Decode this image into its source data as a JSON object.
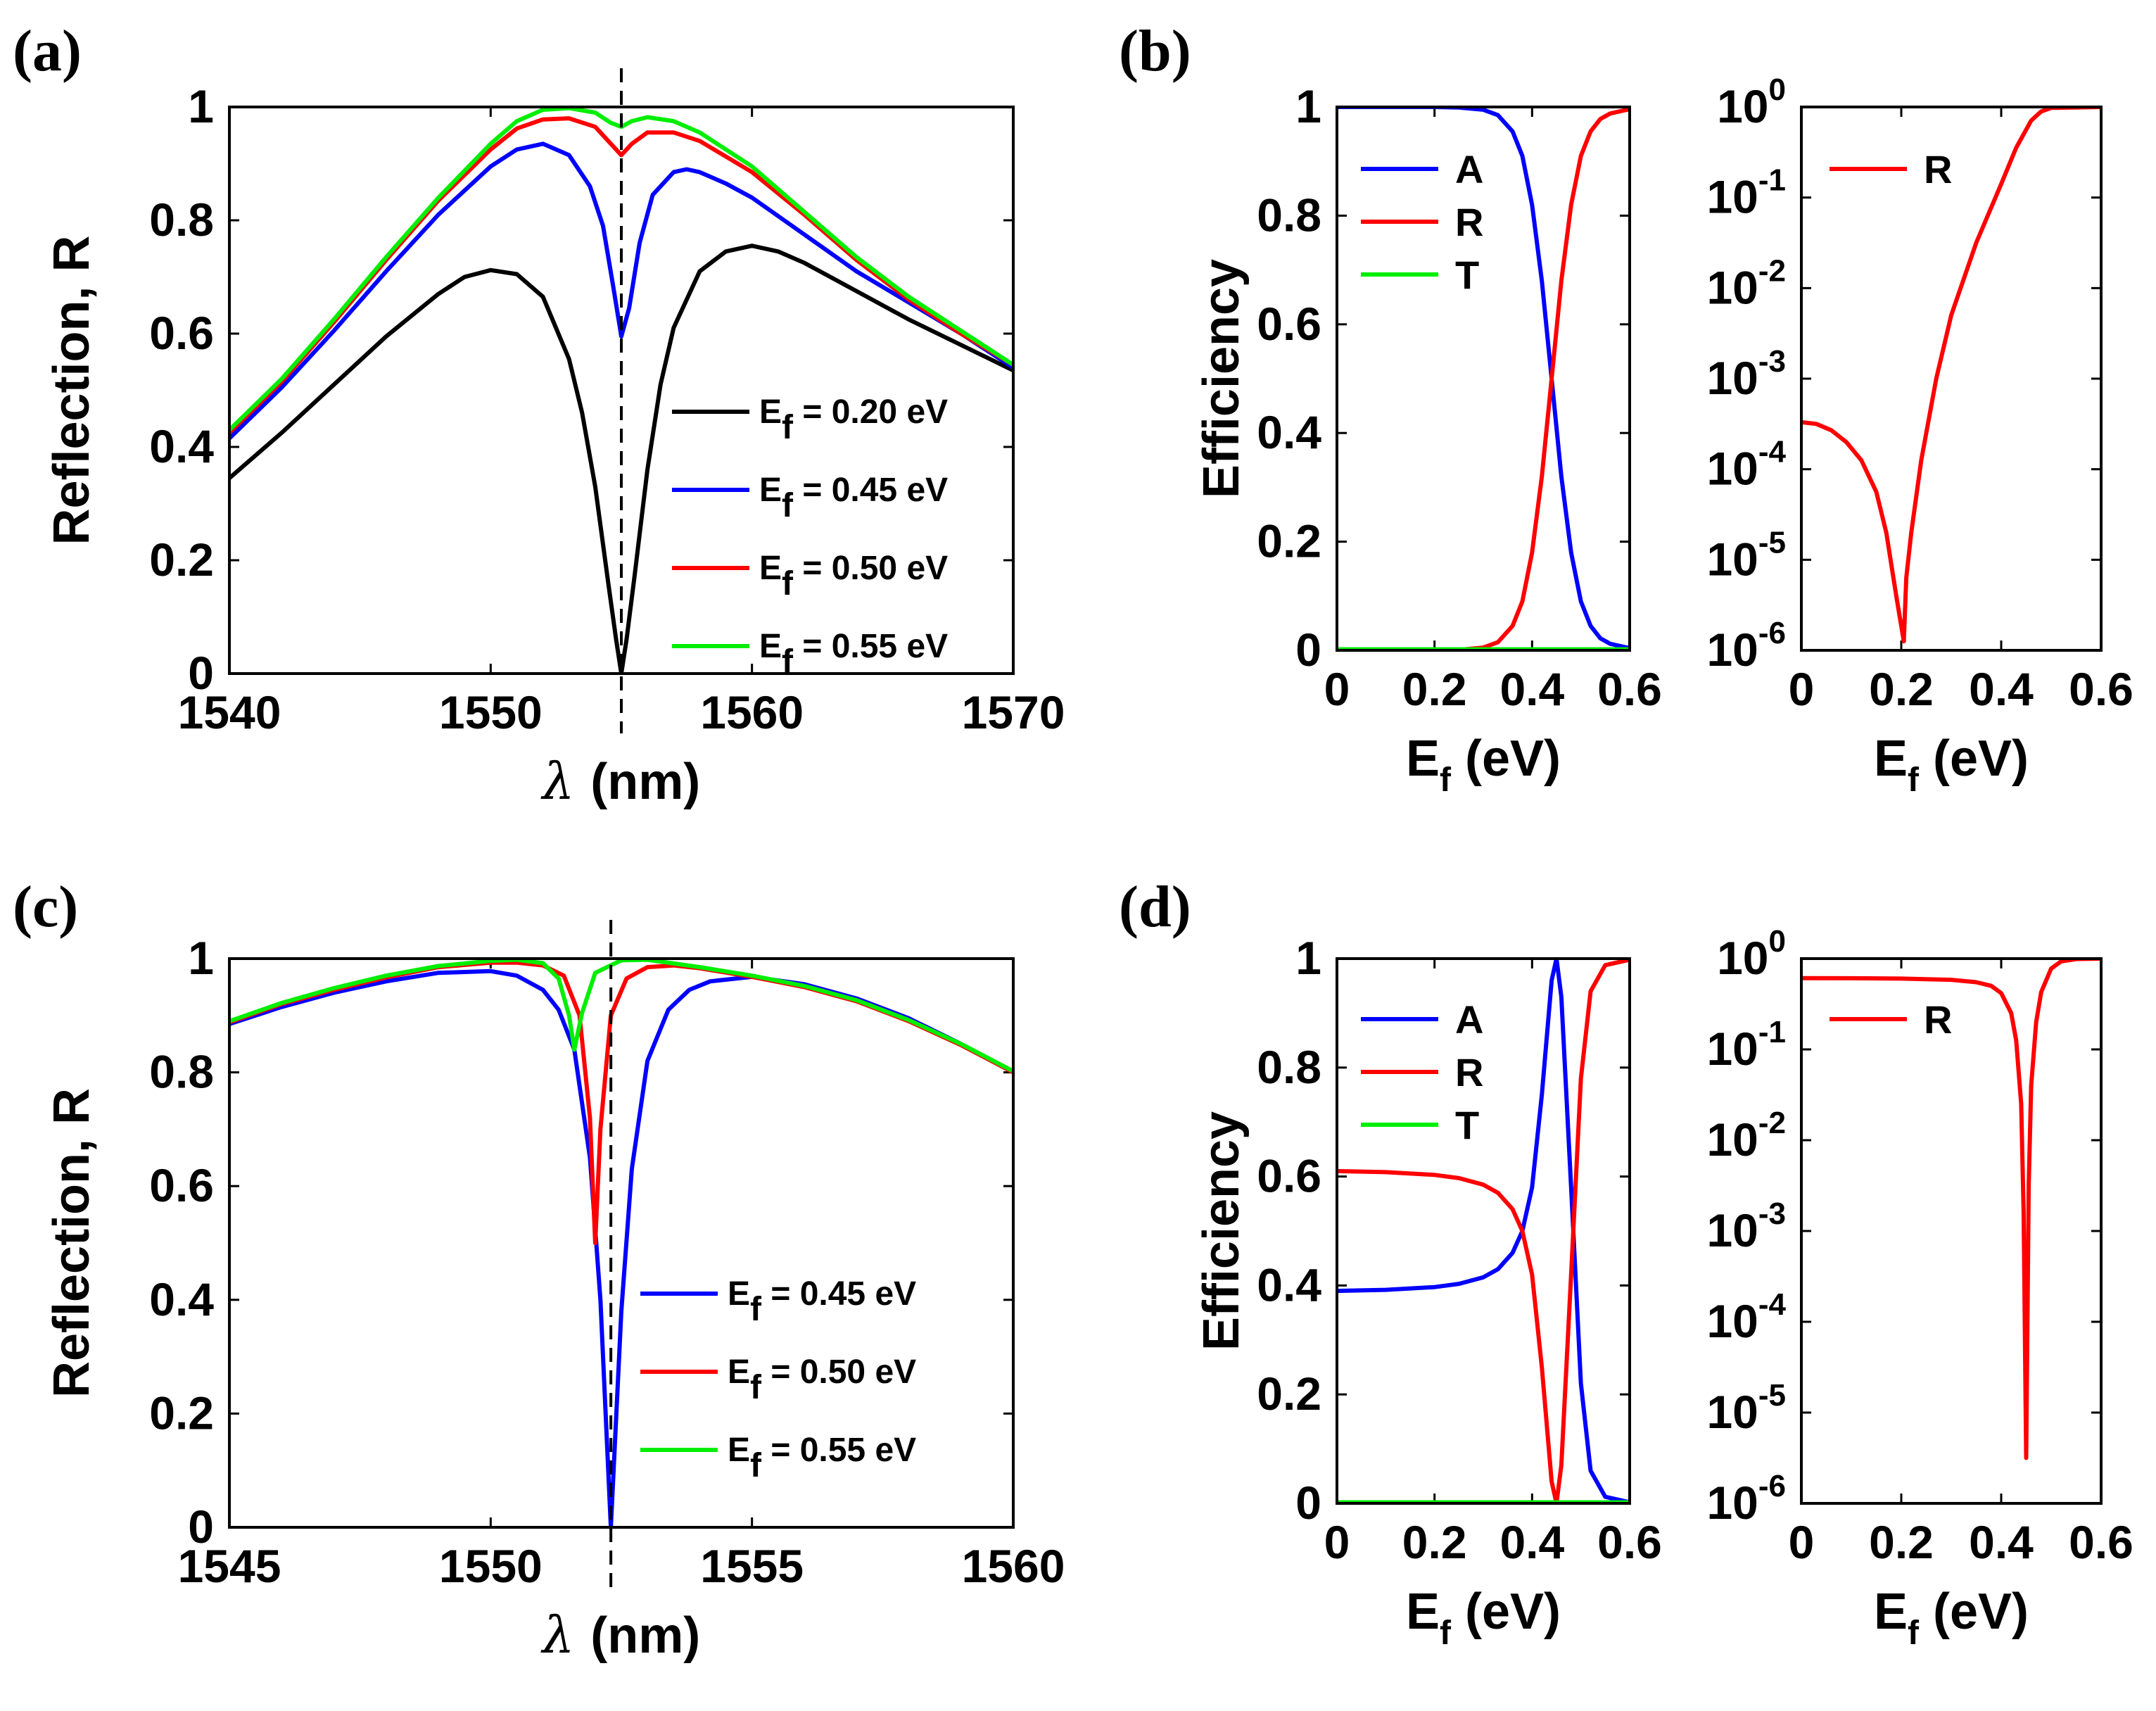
{
  "colors": {
    "black": "#000000",
    "blue": "#0000ff",
    "red": "#ff0000",
    "green": "#00ee00"
  },
  "panels": [
    {
      "label": "(a)"
    },
    {
      "label": "(b)"
    },
    {
      "label": "(c)"
    },
    {
      "label": "(d)"
    }
  ],
  "chart_data": [
    {
      "id": "a",
      "type": "line",
      "xlabel": "λ (nm)",
      "ylabel": "Reflection, R",
      "xlim": [
        1540,
        1570
      ],
      "ylim": [
        0,
        1
      ],
      "xticks": [
        "1540",
        "1550",
        "1560",
        "1570"
      ],
      "yticks": [
        "0",
        "0.2",
        "0.4",
        "0.6",
        "0.8",
        "1"
      ],
      "vline": 1555,
      "legend_position": "bottom-right",
      "series": [
        {
          "name": "Ef = 0.20 eV",
          "base": "E",
          "sub": "f",
          "rest": " = 0.20 eV",
          "color": "#000000",
          "x": [
            1540,
            1542,
            1544,
            1546,
            1548,
            1549,
            1550,
            1551,
            1552,
            1553,
            1553.5,
            1554,
            1554.5,
            1554.8,
            1555,
            1555.2,
            1555.5,
            1556,
            1556.5,
            1557,
            1558,
            1559,
            1560,
            1561,
            1562,
            1564,
            1566,
            1568,
            1570
          ],
          "y": [
            0.345,
            0.425,
            0.51,
            0.595,
            0.67,
            0.7,
            0.712,
            0.705,
            0.665,
            0.555,
            0.46,
            0.33,
            0.16,
            0.06,
            0.0,
            0.06,
            0.17,
            0.36,
            0.51,
            0.61,
            0.71,
            0.745,
            0.755,
            0.745,
            0.725,
            0.675,
            0.625,
            0.58,
            0.535
          ]
        },
        {
          "name": "Ef = 0.45 eV",
          "base": "E",
          "sub": "f",
          "rest": " = 0.45 eV",
          "color": "#0000ff",
          "x": [
            1540,
            1542,
            1544,
            1546,
            1548,
            1550,
            1551,
            1552,
            1553,
            1553.8,
            1554.3,
            1554.7,
            1555,
            1555.3,
            1555.7,
            1556.2,
            1557,
            1557.5,
            1558,
            1559,
            1560,
            1562,
            1564,
            1566,
            1568,
            1570
          ],
          "y": [
            0.415,
            0.505,
            0.605,
            0.71,
            0.81,
            0.895,
            0.925,
            0.935,
            0.915,
            0.86,
            0.79,
            0.68,
            0.595,
            0.645,
            0.76,
            0.845,
            0.885,
            0.89,
            0.885,
            0.865,
            0.84,
            0.775,
            0.71,
            0.655,
            0.6,
            0.54
          ]
        },
        {
          "name": "Ef = 0.50 eV",
          "base": "E",
          "sub": "f",
          "rest": " = 0.50 eV",
          "color": "#ff0000",
          "x": [
            1540,
            1542,
            1544,
            1546,
            1548,
            1550,
            1551,
            1552,
            1553,
            1554,
            1554.6,
            1555,
            1555.4,
            1556,
            1557,
            1558,
            1560,
            1562,
            1564,
            1566,
            1568,
            1570
          ],
          "y": [
            0.425,
            0.515,
            0.62,
            0.73,
            0.835,
            0.925,
            0.962,
            0.978,
            0.98,
            0.965,
            0.935,
            0.915,
            0.935,
            0.955,
            0.955,
            0.94,
            0.885,
            0.81,
            0.73,
            0.66,
            0.6,
            0.545
          ]
        },
        {
          "name": "Ef = 0.55 eV",
          "base": "E",
          "sub": "f",
          "rest": " = 0.55 eV",
          "color": "#00ee00",
          "x": [
            1540,
            1542,
            1544,
            1546,
            1548,
            1550,
            1551,
            1552,
            1553,
            1554,
            1554.6,
            1555,
            1555.4,
            1556,
            1557,
            1558,
            1560,
            1562,
            1564,
            1566,
            1568,
            1570
          ],
          "y": [
            0.43,
            0.52,
            0.625,
            0.735,
            0.84,
            0.935,
            0.975,
            0.995,
            0.998,
            0.99,
            0.972,
            0.965,
            0.975,
            0.982,
            0.975,
            0.955,
            0.895,
            0.815,
            0.735,
            0.665,
            0.605,
            0.545
          ]
        }
      ]
    },
    {
      "id": "b-left",
      "type": "line",
      "xlabel": "Ef (eV)",
      "xlabel_base": "E",
      "xlabel_sub": "f",
      "xlabel_rest": " (eV)",
      "ylabel": "Efficiency",
      "xlim": [
        0,
        0.6
      ],
      "ylim": [
        0,
        1
      ],
      "xticks": [
        "0",
        "0.2",
        "0.4",
        "0.6"
      ],
      "yticks": [
        "0",
        "0.2",
        "0.4",
        "0.6",
        "0.8",
        "1"
      ],
      "legend_position": "top-left",
      "series": [
        {
          "name": "A",
          "color": "#0000ff",
          "x": [
            0,
            0.1,
            0.2,
            0.25,
            0.3,
            0.33,
            0.36,
            0.38,
            0.4,
            0.42,
            0.44,
            0.46,
            0.48,
            0.5,
            0.52,
            0.54,
            0.56,
            0.6
          ],
          "y": [
            1,
            1,
            1,
            0.999,
            0.995,
            0.985,
            0.955,
            0.91,
            0.82,
            0.68,
            0.5,
            0.32,
            0.18,
            0.09,
            0.045,
            0.022,
            0.012,
            0.004
          ]
        },
        {
          "name": "R",
          "color": "#ff0000",
          "x": [
            0,
            0.1,
            0.2,
            0.25,
            0.3,
            0.33,
            0.36,
            0.38,
            0.4,
            0.42,
            0.44,
            0.46,
            0.48,
            0.5,
            0.52,
            0.54,
            0.56,
            0.6
          ],
          "y": [
            0,
            0,
            0,
            0.001,
            0.005,
            0.015,
            0.045,
            0.09,
            0.18,
            0.32,
            0.5,
            0.68,
            0.82,
            0.91,
            0.955,
            0.978,
            0.988,
            0.996
          ]
        },
        {
          "name": "T",
          "color": "#00ee00",
          "x": [
            0,
            0.6
          ],
          "y": [
            0.002,
            0.002
          ]
        }
      ]
    },
    {
      "id": "b-right",
      "type": "line",
      "scale": "log",
      "xlabel": "Ef (eV)",
      "xlabel_base": "E",
      "xlabel_sub": "f",
      "xlabel_rest": " (eV)",
      "xlim": [
        0,
        0.6
      ],
      "ylim_exp": [
        -6,
        0
      ],
      "xticks": [
        "0",
        "0.2",
        "0.4",
        "0.6"
      ],
      "yticks": [
        {
          "base": "10",
          "exp": "-6"
        },
        {
          "base": "10",
          "exp": "-5"
        },
        {
          "base": "10",
          "exp": "-4"
        },
        {
          "base": "10",
          "exp": "-3"
        },
        {
          "base": "10",
          "exp": "-2"
        },
        {
          "base": "10",
          "exp": "-1"
        },
        {
          "base": "10",
          "exp": "0"
        }
      ],
      "legend_position": "top-left",
      "series": [
        {
          "name": "R",
          "color": "#ff0000",
          "x": [
            0,
            0.03,
            0.06,
            0.09,
            0.12,
            0.15,
            0.17,
            0.19,
            0.205,
            0.21,
            0.22,
            0.24,
            0.27,
            0.3,
            0.35,
            0.4,
            0.43,
            0.46,
            0.48,
            0.5,
            0.6
          ],
          "log10y": [
            -3.48,
            -3.5,
            -3.57,
            -3.7,
            -3.9,
            -4.25,
            -4.7,
            -5.4,
            -5.9,
            -5.2,
            -4.7,
            -3.9,
            -3.0,
            -2.3,
            -1.5,
            -0.85,
            -0.45,
            -0.15,
            -0.05,
            -0.01,
            0
          ]
        }
      ]
    },
    {
      "id": "c",
      "type": "line",
      "xlabel": "λ (nm)",
      "ylabel": "Reflection, R",
      "xlim": [
        1545,
        1560
      ],
      "ylim": [
        0,
        1
      ],
      "xticks": [
        "1545",
        "1550",
        "1555",
        "1560"
      ],
      "yticks": [
        "0",
        "0.2",
        "0.4",
        "0.6",
        "0.8",
        "1"
      ],
      "vline": 1552.3,
      "legend_position": "bottom-right",
      "series": [
        {
          "name": "Ef = 0.45 eV",
          "base": "E",
          "sub": "f",
          "rest": " = 0.45 eV",
          "color": "#0000ff",
          "x": [
            1545,
            1546,
            1547,
            1548,
            1549,
            1550,
            1550.5,
            1551,
            1551.3,
            1551.6,
            1551.9,
            1552.1,
            1552.3,
            1552.5,
            1552.7,
            1553,
            1553.4,
            1553.8,
            1554.2,
            1555,
            1556,
            1557,
            1558,
            1559,
            1560
          ],
          "y": [
            0.885,
            0.915,
            0.94,
            0.96,
            0.975,
            0.978,
            0.97,
            0.945,
            0.91,
            0.84,
            0.65,
            0.4,
            0.0,
            0.38,
            0.63,
            0.82,
            0.91,
            0.945,
            0.96,
            0.968,
            0.955,
            0.93,
            0.895,
            0.85,
            0.8
          ]
        },
        {
          "name": "Ef = 0.50 eV",
          "base": "E",
          "sub": "f",
          "rest": " = 0.50 eV",
          "color": "#ff0000",
          "x": [
            1545,
            1546,
            1547,
            1548,
            1549,
            1550,
            1550.5,
            1551,
            1551.4,
            1551.7,
            1551.9,
            1552,
            1552.1,
            1552.3,
            1552.6,
            1553,
            1553.5,
            1554,
            1555,
            1556,
            1557,
            1558,
            1559,
            1560
          ],
          "y": [
            0.888,
            0.92,
            0.945,
            0.967,
            0.985,
            0.993,
            0.993,
            0.988,
            0.97,
            0.9,
            0.72,
            0.5,
            0.7,
            0.9,
            0.965,
            0.985,
            0.988,
            0.983,
            0.968,
            0.95,
            0.925,
            0.89,
            0.848,
            0.8
          ]
        },
        {
          "name": "Ef = 0.55 eV",
          "base": "E",
          "sub": "f",
          "rest": " = 0.55 eV",
          "color": "#00ee00",
          "x": [
            1545,
            1546,
            1547,
            1548,
            1549,
            1550,
            1550.5,
            1551,
            1551.3,
            1551.5,
            1551.6,
            1551.75,
            1552,
            1552.5,
            1553,
            1554,
            1555,
            1556,
            1557,
            1558,
            1559,
            1560
          ],
          "y": [
            0.89,
            0.922,
            0.948,
            0.97,
            0.987,
            0.996,
            0.998,
            0.992,
            0.965,
            0.9,
            0.84,
            0.905,
            0.975,
            0.997,
            0.998,
            0.985,
            0.97,
            0.952,
            0.927,
            0.892,
            0.85,
            0.802
          ]
        }
      ]
    },
    {
      "id": "d-left",
      "type": "line",
      "xlabel": "Ef (eV)",
      "xlabel_base": "E",
      "xlabel_sub": "f",
      "xlabel_rest": " (eV)",
      "ylabel": "Efficiency",
      "xlim": [
        0,
        0.6
      ],
      "ylim": [
        0,
        1
      ],
      "xticks": [
        "0",
        "0.2",
        "0.4",
        "0.6"
      ],
      "yticks": [
        "0",
        "0.2",
        "0.4",
        "0.6",
        "0.8",
        "1"
      ],
      "legend_position": "top-left",
      "series": [
        {
          "name": "A",
          "color": "#0000ff",
          "x": [
            0,
            0.1,
            0.2,
            0.25,
            0.3,
            0.33,
            0.36,
            0.38,
            0.4,
            0.42,
            0.44,
            0.45,
            0.46,
            0.48,
            0.5,
            0.52,
            0.55,
            0.6
          ],
          "y": [
            0.39,
            0.392,
            0.397,
            0.403,
            0.415,
            0.43,
            0.46,
            0.5,
            0.58,
            0.75,
            0.96,
            1.0,
            0.93,
            0.58,
            0.22,
            0.06,
            0.012,
            0.002
          ]
        },
        {
          "name": "R",
          "color": "#ff0000",
          "x": [
            0,
            0.1,
            0.2,
            0.25,
            0.3,
            0.33,
            0.36,
            0.38,
            0.4,
            0.42,
            0.44,
            0.45,
            0.46,
            0.48,
            0.5,
            0.52,
            0.55,
            0.6
          ],
          "y": [
            0.61,
            0.608,
            0.603,
            0.597,
            0.585,
            0.57,
            0.54,
            0.5,
            0.42,
            0.25,
            0.04,
            0.0,
            0.07,
            0.42,
            0.78,
            0.94,
            0.988,
            0.998
          ]
        },
        {
          "name": "T",
          "color": "#00ee00",
          "x": [
            0,
            0.6
          ],
          "y": [
            0.002,
            0.002
          ]
        }
      ]
    },
    {
      "id": "d-right",
      "type": "line",
      "scale": "log",
      "xlabel": "Ef (eV)",
      "xlabel_base": "E",
      "xlabel_sub": "f",
      "xlabel_rest": " (eV)",
      "xlim": [
        0,
        0.6
      ],
      "ylim_exp": [
        -6,
        0
      ],
      "xticks": [
        "0",
        "0.2",
        "0.4",
        "0.6"
      ],
      "yticks": [
        {
          "base": "10",
          "exp": "-6"
        },
        {
          "base": "10",
          "exp": "-5"
        },
        {
          "base": "10",
          "exp": "-4"
        },
        {
          "base": "10",
          "exp": "-3"
        },
        {
          "base": "10",
          "exp": "-2"
        },
        {
          "base": "10",
          "exp": "-1"
        },
        {
          "base": "10",
          "exp": "0"
        }
      ],
      "legend_position": "top-left",
      "series": [
        {
          "name": "R",
          "color": "#ff0000",
          "x": [
            0,
            0.1,
            0.2,
            0.3,
            0.35,
            0.38,
            0.4,
            0.42,
            0.43,
            0.44,
            0.445,
            0.45,
            0.455,
            0.46,
            0.47,
            0.48,
            0.5,
            0.52,
            0.55,
            0.6
          ],
          "log10y": [
            -0.215,
            -0.216,
            -0.22,
            -0.233,
            -0.26,
            -0.3,
            -0.38,
            -0.6,
            -0.9,
            -1.6,
            -2.8,
            -5.5,
            -2.5,
            -1.4,
            -0.7,
            -0.37,
            -0.11,
            -0.03,
            -0.005,
            0
          ]
        }
      ]
    }
  ]
}
